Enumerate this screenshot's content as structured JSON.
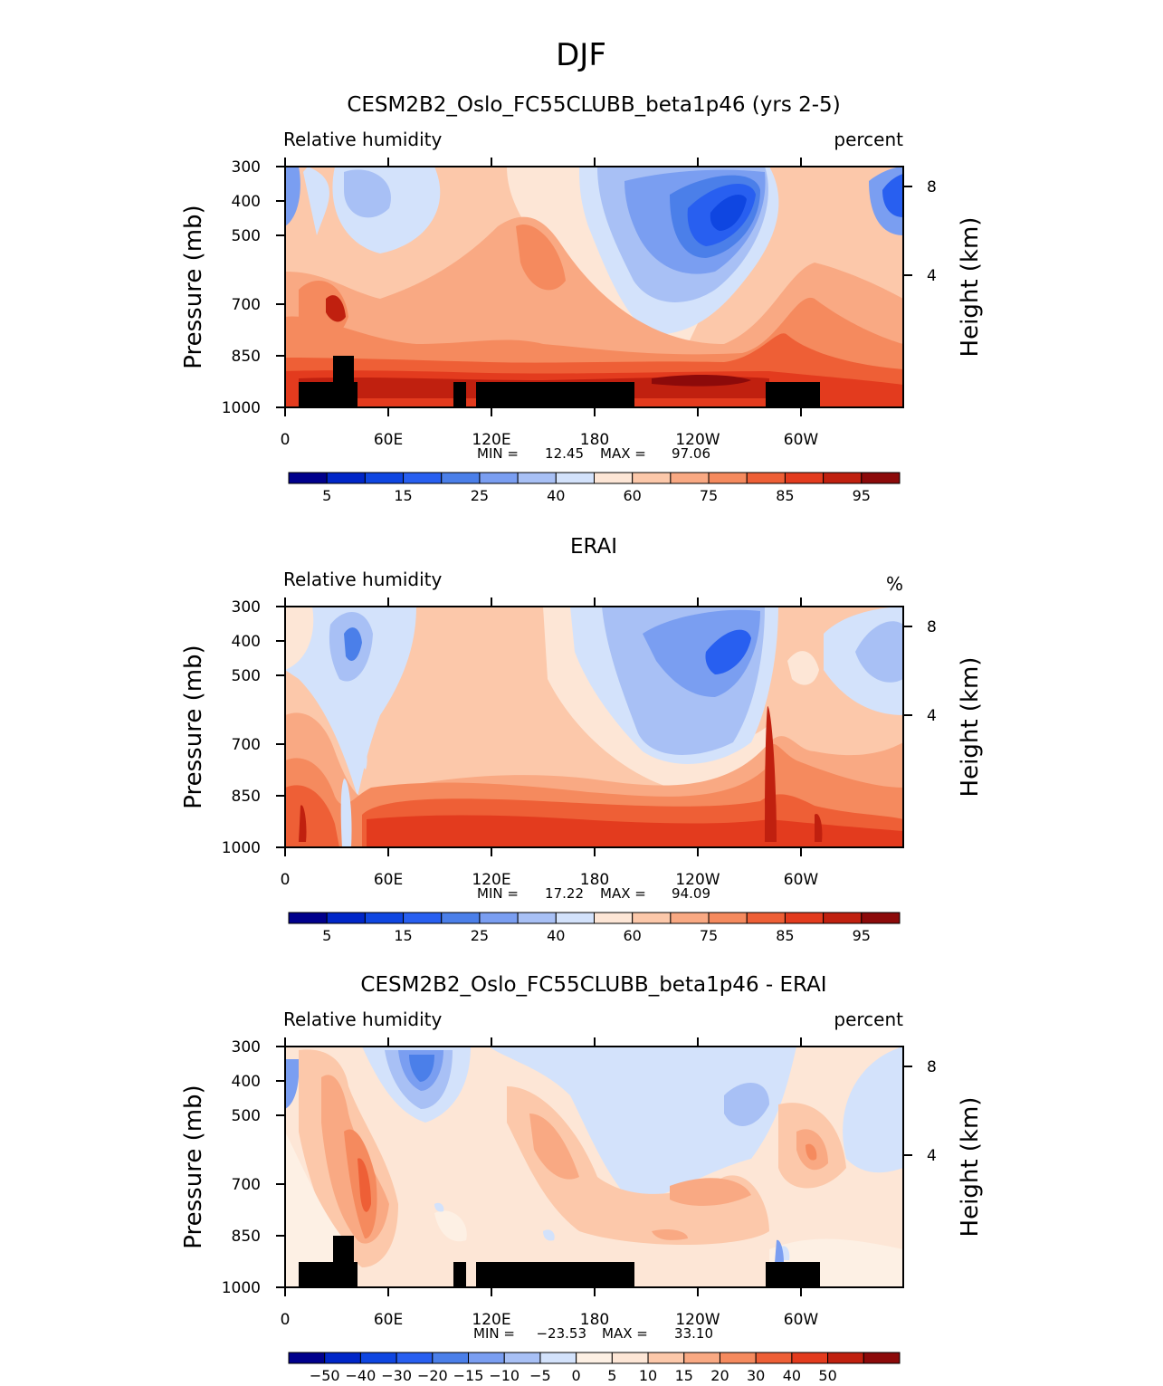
{
  "figure_title": "DJF",
  "colors": {
    "abs": [
      "#00008c",
      "#0026c8",
      "#0f46e1",
      "#285ff0",
      "#4b7fe9",
      "#7a9ef1",
      "#a8c0f5",
      "#d3e2fb",
      "#fde6d6",
      "#fcc8aa",
      "#f9a983",
      "#f58a5e",
      "#ee5f36",
      "#e33b1e",
      "#c0200f",
      "#8c0a0a"
    ],
    "diff": [
      "#00008c",
      "#0026c8",
      "#0f46e1",
      "#285ff0",
      "#4b7fe9",
      "#7a9ef1",
      "#a8c0f5",
      "#d3e2fb",
      "#fdf0e4",
      "#fde6d6",
      "#fcc8aa",
      "#f9a983",
      "#f58a5e",
      "#ee5f36",
      "#e33b1e",
      "#c0200f",
      "#8c0a0a"
    ],
    "terrain": "#000000"
  },
  "chart_data": [
    {
      "type": "heatmap",
      "title": "CESM2B2_Oslo_FC55CLUBB_beta1p46 (yrs 2-5)",
      "left_label": "Relative humidity",
      "right_label": "percent",
      "ylabel": "Pressure (mb)",
      "y2label": "Height (km)",
      "x_ticks": [
        "0",
        "60E",
        "120E",
        "180",
        "120W",
        "60W"
      ],
      "y_ticks": [
        "300",
        "400",
        "500",
        "700",
        "850",
        "1000"
      ],
      "y2_ticks": [
        "8",
        "4"
      ],
      "min_label": "MIN =",
      "min": "12.45",
      "max_label": "MAX =",
      "max": "97.06",
      "colorbar_labels": [
        "5",
        "15",
        "25",
        "40",
        "60",
        "75",
        "85",
        "95"
      ],
      "levels": [
        5,
        10,
        15,
        20,
        25,
        30,
        40,
        50,
        60,
        65,
        70,
        75,
        80,
        85,
        90,
        95
      ],
      "xlim": [
        0,
        360
      ],
      "ylim": [
        1000,
        300
      ]
    },
    {
      "type": "heatmap",
      "title": "ERAI",
      "left_label": "Relative humidity",
      "right_label": "%",
      "ylabel": "Pressure (mb)",
      "y2label": "Height (km)",
      "x_ticks": [
        "0",
        "60E",
        "120E",
        "180",
        "120W",
        "60W"
      ],
      "y_ticks": [
        "300",
        "400",
        "500",
        "700",
        "850",
        "1000"
      ],
      "y2_ticks": [
        "8",
        "4"
      ],
      "min_label": "MIN =",
      "min": "17.22",
      "max_label": "MAX =",
      "max": "94.09",
      "colorbar_labels": [
        "5",
        "15",
        "25",
        "40",
        "60",
        "75",
        "85",
        "95"
      ],
      "levels": [
        5,
        10,
        15,
        20,
        25,
        30,
        40,
        50,
        60,
        65,
        70,
        75,
        80,
        85,
        90,
        95
      ],
      "xlim": [
        0,
        360
      ],
      "ylim": [
        1000,
        300
      ]
    },
    {
      "type": "heatmap",
      "title": "CESM2B2_Oslo_FC55CLUBB_beta1p46 - ERAI",
      "left_label": "Relative humidity",
      "right_label": "percent",
      "ylabel": "Pressure (mb)",
      "y2label": "Height (km)",
      "x_ticks": [
        "0",
        "60E",
        "120E",
        "180",
        "120W",
        "60W"
      ],
      "y_ticks": [
        "300",
        "400",
        "500",
        "700",
        "850",
        "1000"
      ],
      "y2_ticks": [
        "8",
        "4"
      ],
      "min_label": "MIN =",
      "min": "−23.53",
      "max_label": "MAX =",
      "max": "33.10",
      "colorbar_labels": [
        "−50",
        "−40",
        "−30",
        "−20",
        "−15",
        "−10",
        "−5",
        "0",
        "5",
        "10",
        "15",
        "20",
        "30",
        "40",
        "50"
      ],
      "levels": [
        -50,
        -40,
        -30,
        -20,
        -15,
        -10,
        -5,
        0,
        5,
        10,
        15,
        20,
        30,
        40,
        50
      ],
      "xlim": [
        0,
        360
      ],
      "ylim": [
        1000,
        300
      ]
    }
  ]
}
